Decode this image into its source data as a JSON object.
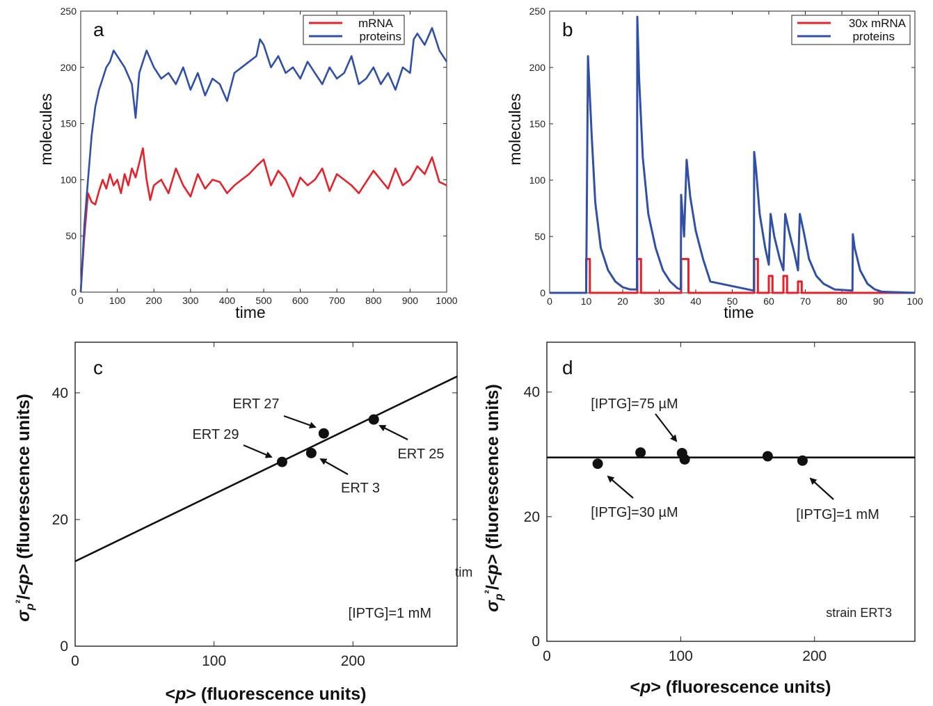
{
  "stray_text": "tim",
  "chart_data": [
    {
      "panel": "a",
      "type": "line",
      "xlabel": "time",
      "ylabel": "molecules",
      "xlim": [
        0,
        1000
      ],
      "ylim": [
        0,
        250
      ],
      "xticks": [
        "0",
        "100",
        "200",
        "300",
        "400",
        "500",
        "600",
        "700",
        "800",
        "900",
        "1000"
      ],
      "yticks": [
        "0",
        "50",
        "100",
        "150",
        "200",
        "250"
      ],
      "legend_position": "top-right",
      "series": [
        {
          "name": "mRNA",
          "color": "#e8202a",
          "x": [
            0,
            10,
            20,
            30,
            40,
            50,
            60,
            70,
            80,
            90,
            100,
            110,
            120,
            130,
            140,
            150,
            160,
            170,
            180,
            190,
            200,
            220,
            240,
            260,
            280,
            300,
            320,
            340,
            360,
            380,
            400,
            420,
            440,
            460,
            480,
            500,
            520,
            540,
            560,
            580,
            600,
            620,
            640,
            660,
            680,
            700,
            720,
            740,
            760,
            780,
            800,
            820,
            840,
            860,
            880,
            900,
            920,
            940,
            960,
            980,
            1000
          ],
          "values": [
            0,
            50,
            88,
            80,
            78,
            90,
            100,
            92,
            105,
            95,
            100,
            88,
            105,
            95,
            110,
            102,
            115,
            128,
            100,
            82,
            95,
            100,
            88,
            110,
            95,
            85,
            105,
            92,
            100,
            98,
            88,
            95,
            100,
            105,
            112,
            118,
            95,
            108,
            100,
            85,
            102,
            95,
            100,
            110,
            90,
            105,
            100,
            95,
            88,
            98,
            108,
            100,
            92,
            110,
            95,
            100,
            112,
            105,
            120,
            98,
            95
          ]
        },
        {
          "name": "proteins",
          "color": "#3050a8",
          "x": [
            0,
            10,
            20,
            30,
            40,
            50,
            60,
            70,
            80,
            90,
            100,
            120,
            140,
            150,
            160,
            170,
            180,
            200,
            220,
            240,
            260,
            280,
            300,
            320,
            340,
            360,
            380,
            400,
            420,
            440,
            460,
            480,
            490,
            500,
            520,
            540,
            560,
            580,
            600,
            620,
            640,
            660,
            680,
            700,
            720,
            740,
            760,
            780,
            800,
            820,
            840,
            860,
            880,
            900,
            910,
            920,
            940,
            960,
            980,
            1000
          ],
          "values": [
            0,
            60,
            100,
            140,
            165,
            180,
            190,
            200,
            205,
            215,
            210,
            200,
            185,
            155,
            195,
            205,
            215,
            200,
            190,
            195,
            185,
            200,
            180,
            195,
            175,
            190,
            185,
            170,
            195,
            200,
            205,
            210,
            225,
            220,
            200,
            210,
            195,
            200,
            190,
            205,
            195,
            185,
            200,
            190,
            195,
            210,
            185,
            190,
            200,
            185,
            195,
            180,
            200,
            195,
            225,
            230,
            220,
            235,
            215,
            205
          ]
        }
      ]
    },
    {
      "panel": "b",
      "type": "line",
      "xlabel": "time",
      "ylabel": "molecules",
      "xlim": [
        0,
        100
      ],
      "ylim": [
        0,
        250
      ],
      "xticks": [
        "0",
        "10",
        "20",
        "30",
        "40",
        "50",
        "60",
        "70",
        "80",
        "90",
        "100"
      ],
      "yticks": [
        "0",
        "50",
        "100",
        "150",
        "200",
        "250"
      ],
      "legend_position": "top-right",
      "series": [
        {
          "name": "30x mRNA",
          "color": "#e8202a",
          "x": [
            0,
            10,
            10,
            11,
            11,
            24,
            24,
            25,
            25,
            36,
            36,
            37,
            37,
            38,
            38,
            56,
            56,
            57,
            57,
            60,
            60,
            61,
            61,
            64,
            64,
            65,
            65,
            68,
            68,
            69,
            69,
            100
          ],
          "values": [
            0,
            0,
            30,
            30,
            0,
            0,
            30,
            30,
            0,
            0,
            30,
            30,
            30,
            30,
            0,
            0,
            30,
            30,
            0,
            0,
            15,
            15,
            0,
            0,
            15,
            15,
            0,
            0,
            10,
            10,
            0,
            0
          ]
        },
        {
          "name": "proteins",
          "color": "#3050a8",
          "x": [
            0,
            10,
            10.5,
            11.5,
            12.5,
            14,
            16,
            18,
            20,
            22,
            23.9,
            24,
            24.5,
            25.5,
            27,
            29,
            31,
            33,
            35,
            35.9,
            36,
            36.8,
            37.5,
            38.5,
            40,
            42,
            44,
            55.9,
            56,
            56.5,
            57.5,
            59,
            60,
            60.5,
            61.5,
            63,
            64,
            64.5,
            65.5,
            67,
            68,
            68.5,
            69.5,
            71,
            73,
            75,
            78,
            82.9,
            83,
            83.5,
            85,
            87,
            89,
            91,
            100
          ],
          "values": [
            0,
            0,
            210,
            140,
            80,
            40,
            20,
            10,
            5,
            3,
            3,
            245,
            190,
            120,
            70,
            40,
            20,
            10,
            4,
            3,
            87,
            50,
            118,
            85,
            55,
            30,
            10,
            2,
            125,
            110,
            70,
            40,
            25,
            70,
            50,
            30,
            20,
            70,
            55,
            35,
            20,
            70,
            55,
            30,
            15,
            8,
            3,
            2,
            52,
            40,
            20,
            8,
            3,
            1,
            0
          ]
        }
      ]
    },
    {
      "panel": "c",
      "type": "scatter",
      "xlabel": "<p> (fluorescence units)",
      "ylabel": "σp²/<p> (fluorescence units)",
      "xlim": [
        0,
        275
      ],
      "ylim": [
        0,
        48
      ],
      "xticks": [
        "0",
        "100",
        "200"
      ],
      "yticks": [
        "0",
        "20",
        "40"
      ],
      "fit_line": {
        "x": [
          0,
          275
        ],
        "y": [
          13.4,
          42.6
        ]
      },
      "points": [
        {
          "x": 149,
          "y": 29.1,
          "label": "ERT 29"
        },
        {
          "x": 170,
          "y": 30.5,
          "label": "ERT 3"
        },
        {
          "x": 179,
          "y": 33.6,
          "label": "ERT 27"
        },
        {
          "x": 215,
          "y": 35.8,
          "label": "ERT 25"
        }
      ],
      "annotation": "[IPTG]=1 mM"
    },
    {
      "panel": "d",
      "type": "scatter",
      "xlabel": "<p> (fluorescence units)",
      "ylabel": "σp²/<p> (fluorescence units)",
      "xlim": [
        0,
        275
      ],
      "ylim": [
        0,
        48
      ],
      "xticks": [
        "0",
        "100",
        "200"
      ],
      "yticks": [
        "0",
        "20",
        "40"
      ],
      "fit_line": {
        "x": [
          0,
          275
        ],
        "y": [
          29.5,
          29.5
        ]
      },
      "points": [
        {
          "x": 38,
          "y": 28.5,
          "label": "[IPTG]=30 µM"
        },
        {
          "x": 70,
          "y": 30.3,
          "label": ""
        },
        {
          "x": 101,
          "y": 30.2,
          "label": "[IPTG]=75 µM"
        },
        {
          "x": 103,
          "y": 29.2,
          "label": ""
        },
        {
          "x": 165,
          "y": 29.7,
          "label": ""
        },
        {
          "x": 191,
          "y": 29.0,
          "label": "[IPTG]=1 mM"
        }
      ],
      "annotation": "strain ERT3"
    }
  ]
}
